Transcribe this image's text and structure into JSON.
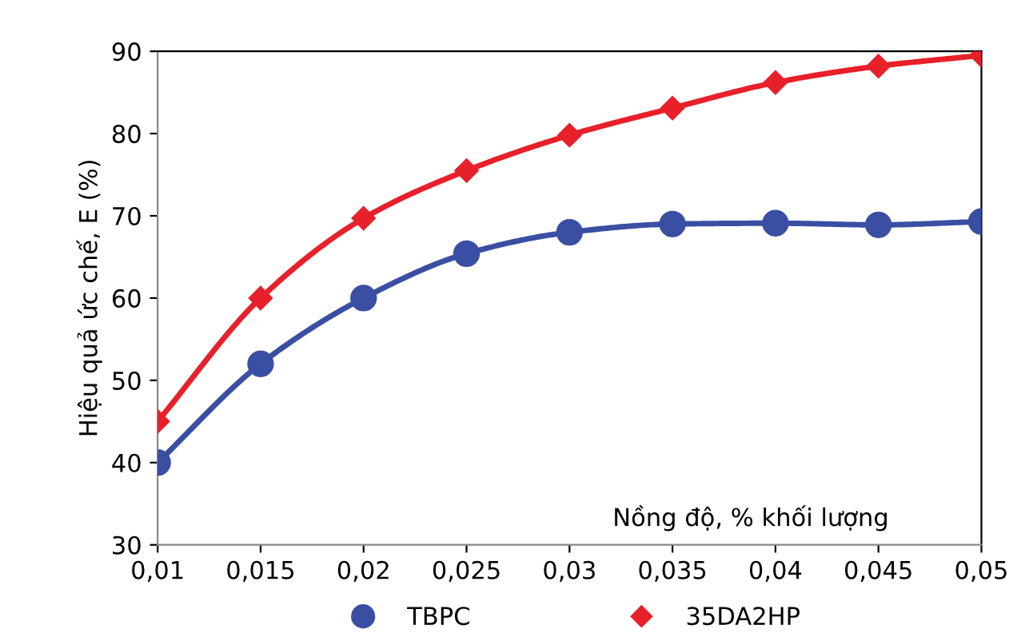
{
  "chart_data": {
    "type": "line",
    "xlabel": "Nồng độ, % khối lượng",
    "ylabel": "Hiệu quả ức chế, E (%)",
    "x": [
      0.01,
      0.015,
      0.02,
      0.025,
      0.03,
      0.035,
      0.04,
      0.045,
      0.05
    ],
    "series": [
      {
        "name": "TBPC",
        "color": "#3a4fa3",
        "marker": "circle",
        "values": [
          40,
          52,
          60,
          65.4,
          68,
          69,
          69.1,
          68.9,
          69.3
        ]
      },
      {
        "name": "35DA2HP",
        "color": "#e8202a",
        "marker": "diamond",
        "values": [
          45,
          60,
          69.7,
          75.5,
          79.8,
          83.1,
          86.2,
          88.2,
          89.5
        ]
      }
    ],
    "xlim": [
      0.01,
      0.05
    ],
    "ylim": [
      30,
      90
    ],
    "xticks": [
      {
        "value": 0.01,
        "label": "0,01"
      },
      {
        "value": 0.015,
        "label": "0,015"
      },
      {
        "value": 0.02,
        "label": "0,02"
      },
      {
        "value": 0.025,
        "label": "0,025"
      },
      {
        "value": 0.03,
        "label": "0,03"
      },
      {
        "value": 0.035,
        "label": "0,035"
      },
      {
        "value": 0.04,
        "label": "0,04"
      },
      {
        "value": 0.045,
        "label": "0,045"
      },
      {
        "value": 0.05,
        "label": "0,05"
      }
    ],
    "yticks": [
      30,
      40,
      50,
      60,
      70,
      80,
      90
    ],
    "grid": false,
    "legend": "bottom",
    "line_style": "solid"
  }
}
